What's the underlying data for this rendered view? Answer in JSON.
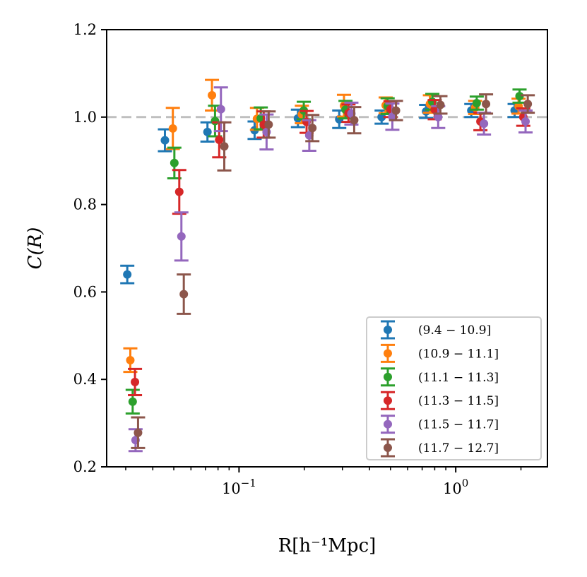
{
  "chart_data": {
    "type": "scatter",
    "xlabel": "R[h⁻¹Mpc]",
    "ylabel": "C(R)",
    "xscale": "log",
    "xlim": [
      0.0245,
      2.65
    ],
    "ylim": [
      0.2,
      1.2
    ],
    "yticks": [
      "0.2",
      "0.4",
      "0.6",
      "0.8",
      "1.0",
      "1.2"
    ],
    "xticks": [
      {
        "value": 0.1,
        "label_base": "10",
        "label_exp": "−1"
      },
      {
        "value": 1.0,
        "label_base": "10",
        "label_exp": "0"
      }
    ],
    "reference_line": {
      "y": 1.0,
      "style": "dashed",
      "color": "#bfbfbf"
    },
    "grid": false,
    "legend_position": "lower-right",
    "series": [
      {
        "name": "(9.4 − 10.9]",
        "color": "#1f77b4",
        "x": [
          0.0305,
          0.0455,
          0.0715,
          0.118,
          0.187,
          0.29,
          0.455,
          0.73,
          1.18,
          1.87
        ],
        "y": [
          0.64,
          0.947,
          0.966,
          0.97,
          0.997,
          0.995,
          1.0,
          1.013,
          1.015,
          1.015
        ],
        "err": [
          0.02,
          0.025,
          0.022,
          0.02,
          0.02,
          0.02,
          0.015,
          0.015,
          0.015,
          0.015
        ]
      },
      {
        "name": "(10.9 − 11.1]",
        "color": "#ff7f0e",
        "x": [
          0.0315,
          0.0495,
          0.075,
          0.121,
          0.195,
          0.305,
          0.475,
          0.76,
          1.23,
          1.95
        ],
        "y": [
          0.444,
          0.974,
          1.05,
          0.996,
          1.006,
          1.026,
          1.027,
          1.03,
          1.022,
          1.025
        ],
        "err": [
          0.027,
          0.047,
          0.035,
          0.025,
          0.02,
          0.025,
          0.018,
          0.02,
          0.015,
          0.017
        ]
      },
      {
        "name": "(11.1 − 11.3]",
        "color": "#2ca02c",
        "x": [
          0.0323,
          0.0503,
          0.0775,
          0.126,
          0.199,
          0.31,
          0.485,
          0.78,
          1.25,
          1.97
        ],
        "y": [
          0.349,
          0.895,
          0.991,
          0.997,
          1.015,
          1.017,
          1.025,
          1.035,
          1.032,
          1.048
        ],
        "err": [
          0.027,
          0.035,
          0.035,
          0.025,
          0.02,
          0.02,
          0.018,
          0.018,
          0.015,
          0.015
        ]
      },
      {
        "name": "(11.3 − 11.5]",
        "color": "#d62728",
        "x": [
          0.0331,
          0.053,
          0.081,
          0.13,
          0.205,
          0.32,
          0.5,
          0.8,
          1.3,
          2.05
        ],
        "y": [
          0.394,
          0.829,
          0.948,
          0.983,
          0.989,
          1.009,
          1.018,
          1.017,
          0.99,
          1.0
        ],
        "err": [
          0.03,
          0.05,
          0.04,
          0.03,
          0.025,
          0.02,
          0.018,
          0.022,
          0.02,
          0.02
        ]
      },
      {
        "name": "(11.5 − 11.7]",
        "color": "#9467bd",
        "x": [
          0.0333,
          0.0542,
          0.0825,
          0.134,
          0.211,
          0.33,
          0.51,
          0.83,
          1.35,
          2.1
        ],
        "y": [
          0.261,
          0.727,
          1.018,
          0.966,
          0.958,
          1.008,
          1.001,
          1.0,
          0.985,
          0.99
        ],
        "err": [
          0.025,
          0.055,
          0.05,
          0.04,
          0.035,
          0.025,
          0.03,
          0.025,
          0.025,
          0.025
        ]
      },
      {
        "name": "(11.7 − 12.7]",
        "color": "#8c564b",
        "x": [
          0.0342,
          0.0556,
          0.0855,
          0.137,
          0.218,
          0.34,
          0.53,
          0.85,
          1.38,
          2.15
        ],
        "y": [
          0.278,
          0.595,
          0.933,
          0.983,
          0.975,
          0.993,
          1.015,
          1.028,
          1.03,
          1.03
        ],
        "err": [
          0.035,
          0.045,
          0.055,
          0.03,
          0.03,
          0.03,
          0.022,
          0.02,
          0.022,
          0.02
        ]
      }
    ]
  }
}
